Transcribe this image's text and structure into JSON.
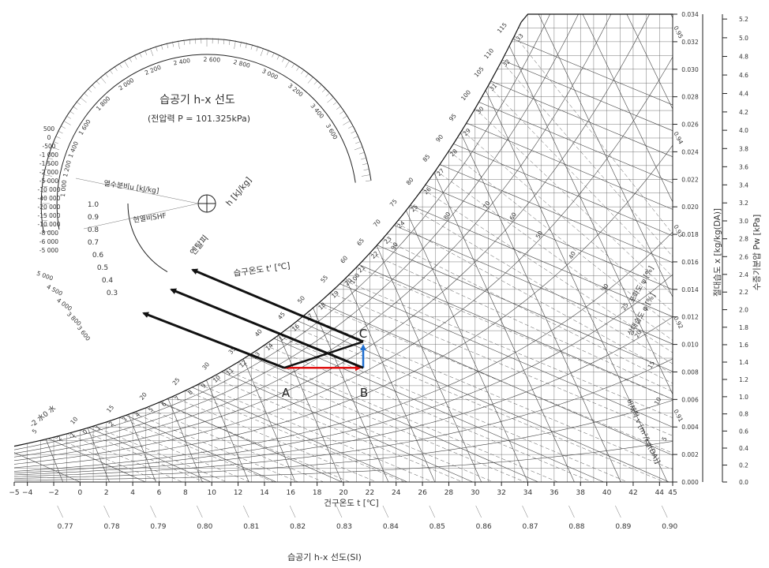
{
  "title": "습공기 h-x 선도",
  "subtitle": "(전압력 P = 101.325kPa)",
  "caption": "습공기 h-x 선도(SI)",
  "protractor": {
    "outer_ticks": [
      "2 400",
      "2 600",
      "2 800",
      "3 000",
      "3 200",
      "3 400",
      "3 600",
      "2 200",
      "2 000",
      "1 800",
      "1 600",
      "1 400",
      "1 200",
      "1 000"
    ],
    "inner_left": [
      "500",
      "0",
      "-500",
      "-1 000",
      "-1 500",
      "-2 000",
      "-5 000",
      "-10 000",
      "-40 000",
      "-20 000",
      "-15 000",
      "-10 000",
      "-8 000",
      "-6 000",
      "-5 000"
    ],
    "shf_ticks": [
      "1.0",
      "0.9",
      "0.8",
      "0.7",
      "0.6",
      "0.5",
      "0.4",
      "0.3"
    ],
    "lower_ticks": [
      "5 000",
      "4 500",
      "4 000",
      "3 800",
      "3 600"
    ],
    "label_u": "열수분비u [kJ/kg]",
    "label_shf": "현열비SHF"
  },
  "x_axis": {
    "title": "건구온도 t [℃]",
    "ticks": [
      "−5",
      "−4",
      "−2",
      "0",
      "2",
      "4",
      "6",
      "8",
      "10",
      "12",
      "14",
      "16",
      "18",
      "20",
      "22",
      "24",
      "26",
      "28",
      "30",
      "32",
      "34",
      "36",
      "38",
      "40",
      "42",
      "44",
      "45"
    ]
  },
  "specific_volume": {
    "ticks": [
      "0.77",
      "0.78",
      "0.79",
      "0.80",
      "0.81",
      "0.82",
      "0.83",
      "0.84",
      "0.85",
      "0.86",
      "0.87",
      "0.88",
      "0.89",
      "0.90"
    ],
    "diag_label": "비체적 v [m³/kg(DA)]"
  },
  "right_axis_x": {
    "title": "절대습도 x [kg/kg(DA)]",
    "ticks": [
      "0.034",
      "0.032",
      "0.030",
      "0.028",
      "0.026",
      "0.024",
      "0.022",
      "0.020",
      "0.018",
      "0.016",
      "0.014",
      "0.012",
      "0.010",
      "0.008",
      "0.006",
      "0.004",
      "0.002",
      "0.000"
    ]
  },
  "right_axis_p": {
    "title": "수증기분압 Pw [kPa]",
    "ticks": [
      "5.2",
      "5.0",
      "4.8",
      "4.6",
      "4.4",
      "4.2",
      "4.0",
      "3.8",
      "3.6",
      "3.4",
      "3.2",
      "3.0",
      "2.8",
      "2.6",
      "2.4",
      "2.2",
      "2.0",
      "1.8",
      "1.6",
      "1.4",
      "1.2",
      "1.0",
      "0.8",
      "0.6",
      "0.4",
      "0.2",
      "0.0"
    ]
  },
  "enthalpy": {
    "title": "h [kJ/kg]",
    "sublabel": "엔탈피",
    "ticks": [
      "115",
      "110",
      "105",
      "100",
      "95",
      "90",
      "85",
      "80",
      "75",
      "70",
      "65",
      "60",
      "55",
      "50",
      "45",
      "40",
      "35",
      "30",
      "25",
      "20",
      "15",
      "10",
      "5"
    ]
  },
  "wet_bulb": {
    "label": "습구온도 t' [℃]",
    "ticks": [
      "33",
      "32",
      "31",
      "30",
      "29",
      "28",
      "27",
      "26",
      "25",
      "24",
      "23",
      "22",
      "21",
      "20",
      "19",
      "18",
      "17",
      "16",
      "15",
      "14",
      "13",
      "12",
      "11",
      "10",
      "9",
      "8",
      "7",
      "6",
      "5",
      "4",
      "3",
      "2",
      "1",
      "0",
      "-1",
      "-2"
    ],
    "ice_label": "-2 水0 水"
  },
  "rh": {
    "label1": "포화도 ψ [%]",
    "label2": "상대습도 φ [%]",
    "curve_labels": [
      "100",
      "90",
      "80",
      "70",
      "60",
      "50",
      "40",
      "30",
      "25",
      "20",
      "15",
      "10",
      "5"
    ]
  },
  "sv_right_ticks": [
    "0.95",
    "0.94",
    "0.93",
    "0.92",
    "0.91"
  ],
  "points": {
    "A": {
      "label": "A",
      "t": 15.5,
      "x": 0.0083
    },
    "B": {
      "label": "B",
      "t": 21.5,
      "x": 0.0083
    },
    "C": {
      "label": "C",
      "t": 21.5,
      "x": 0.0102
    }
  },
  "colors": {
    "ab_line": "#e01010",
    "bc_line": "#1f6fd1",
    "enthalpy_arrows": "#111111"
  }
}
